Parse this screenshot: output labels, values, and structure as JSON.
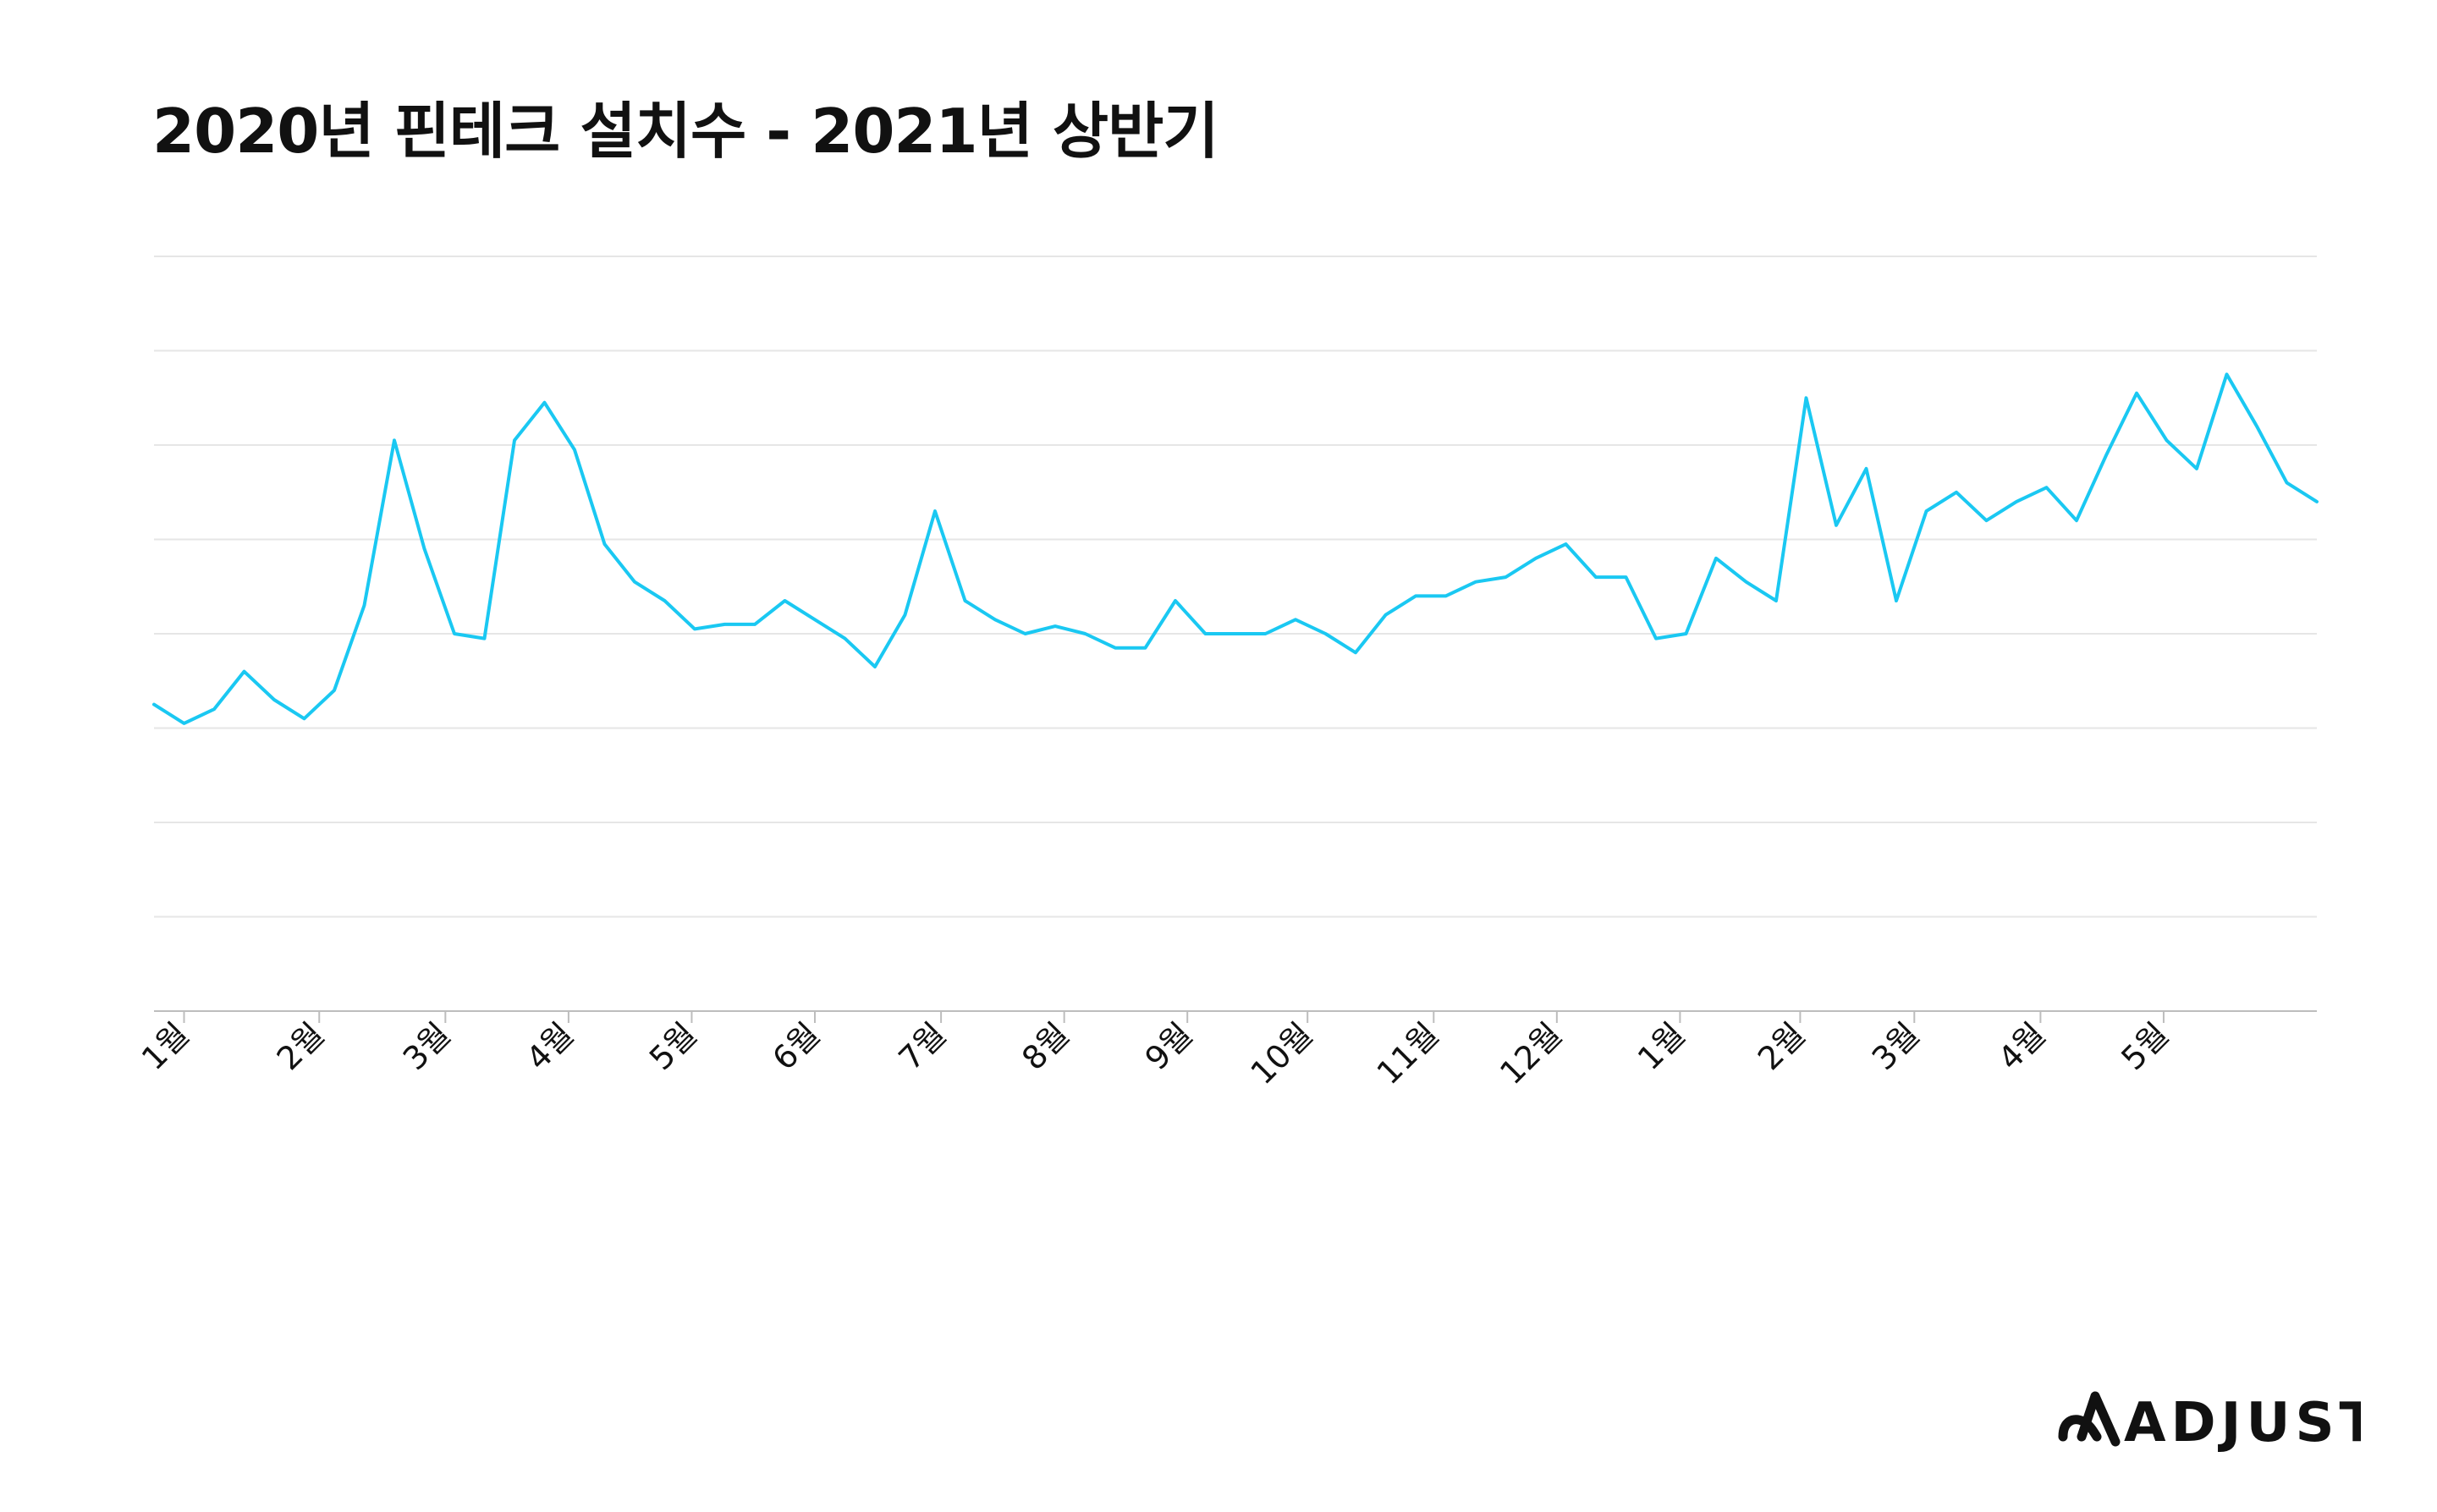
{
  "title": "2020년 핀테크 설치수 - 2021년 상반기",
  "brand": {
    "name": "ADJUST",
    "icon": "adjust-logo-icon"
  },
  "colors": {
    "line": "#1ac8f2",
    "grid": "#e6e6e6",
    "axis": "#bdbdbd",
    "text": "#111111"
  },
  "chart_data": {
    "type": "line",
    "title": "2020년 핀테크 설치수 - 2021년 상반기",
    "xlabel": "",
    "ylabel": "",
    "y_axis_labels_shown": false,
    "grid": true,
    "legend": "none",
    "ylim": [
      0,
      8
    ],
    "x_tick_labels": [
      "1월",
      "2월",
      "3월",
      "4월",
      "5월",
      "6월",
      "7월",
      "8월",
      "9월",
      "10월",
      "11월",
      "12월",
      "1월",
      "2월",
      "3월",
      "4월",
      "5월"
    ],
    "x_tick_positions": [
      1,
      5.5,
      9.7,
      13.8,
      17.9,
      22,
      26.2,
      30.3,
      34.4,
      38.4,
      42.6,
      46.7,
      50.8,
      54.8,
      58.6,
      62.8,
      66.9
    ],
    "series": [
      {
        "values": [
          3.25,
          3.05,
          3.2,
          3.6,
          3.3,
          3.1,
          3.4,
          4.3,
          6.05,
          4.9,
          4.0,
          3.95,
          6.05,
          6.45,
          5.95,
          4.95,
          4.55,
          4.35,
          4.05,
          4.1,
          4.1,
          4.35,
          4.15,
          3.95,
          3.65,
          4.2,
          5.3,
          4.35,
          4.15,
          4.0,
          4.08,
          4.0,
          3.85,
          3.85,
          4.35,
          4.0,
          4.0,
          4.0,
          4.15,
          4.0,
          3.8,
          4.2,
          4.4,
          4.4,
          4.55,
          4.6,
          4.8,
          4.95,
          4.6,
          4.6,
          3.95,
          4.0,
          4.8,
          4.55,
          4.35,
          6.5,
          5.15,
          5.75,
          4.35,
          5.3,
          5.5,
          5.2,
          5.4,
          5.55,
          5.2,
          5.9,
          6.55,
          6.05,
          5.75,
          6.75,
          6.2,
          5.6,
          5.4
        ]
      }
    ]
  }
}
